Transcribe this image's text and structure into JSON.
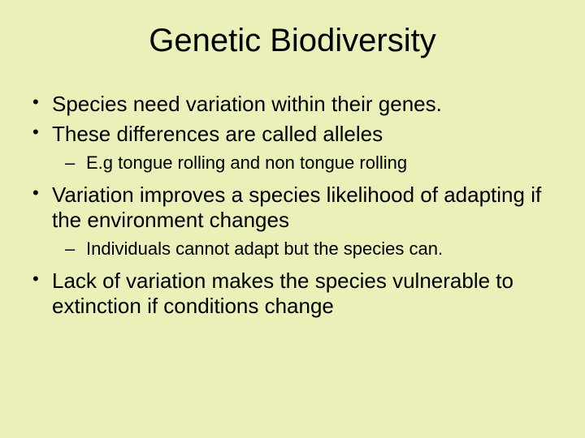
{
  "background_color": "#ebf0b8",
  "text_color": "#000000",
  "title": {
    "text": "Genetic Biodiversity",
    "fontsize": 40
  },
  "body_fontsize_l1": 26,
  "body_fontsize_l2": 22,
  "bullets": {
    "b1": "Species need variation within their genes.",
    "b2": "These differences are called alleles",
    "b2_sub1": "E.g tongue rolling and non tongue rolling",
    "b3": "Variation improves a species likelihood of adapting if the environment changes",
    "b3_sub1": "Individuals cannot adapt but the species can.",
    "b4": "Lack of variation makes the species vulnerable to extinction if conditions change"
  }
}
